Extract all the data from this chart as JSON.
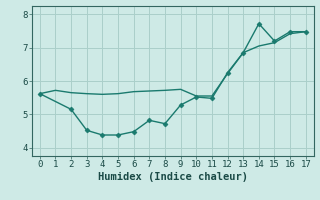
{
  "x": [
    0,
    1,
    2,
    3,
    4,
    5,
    6,
    7,
    8,
    9,
    10,
    11,
    12,
    13,
    14,
    15,
    16,
    17
  ],
  "line1_y": [
    5.62,
    5.72,
    5.65,
    5.62,
    5.6,
    5.62,
    5.68,
    5.7,
    5.72,
    5.75,
    5.55,
    5.55,
    6.22,
    6.85,
    7.05,
    7.15,
    7.42,
    7.48
  ],
  "line2_x": [
    0,
    2,
    3,
    4,
    5,
    6,
    7,
    8,
    9,
    10,
    11,
    12,
    13,
    14,
    15,
    16,
    17
  ],
  "line2_y": [
    5.62,
    5.15,
    4.52,
    4.38,
    4.38,
    4.48,
    4.82,
    4.72,
    5.28,
    5.52,
    5.48,
    6.25,
    6.85,
    7.72,
    7.2,
    7.48,
    7.48
  ],
  "color": "#1a7a6e",
  "bg_color": "#ceeae6",
  "grid_color": "#aacfca",
  "xlabel": "Humidex (Indice chaleur)",
  "xlim": [
    -0.5,
    17.5
  ],
  "ylim": [
    3.75,
    8.25
  ],
  "yticks": [
    4,
    5,
    6,
    7,
    8
  ],
  "xticks": [
    0,
    1,
    2,
    3,
    4,
    5,
    6,
    7,
    8,
    9,
    10,
    11,
    12,
    13,
    14,
    15,
    16,
    17
  ],
  "marker": "D",
  "markersize": 2.5,
  "linewidth": 1.0,
  "tick_fontsize": 6.5,
  "xlabel_fontsize": 7.5
}
